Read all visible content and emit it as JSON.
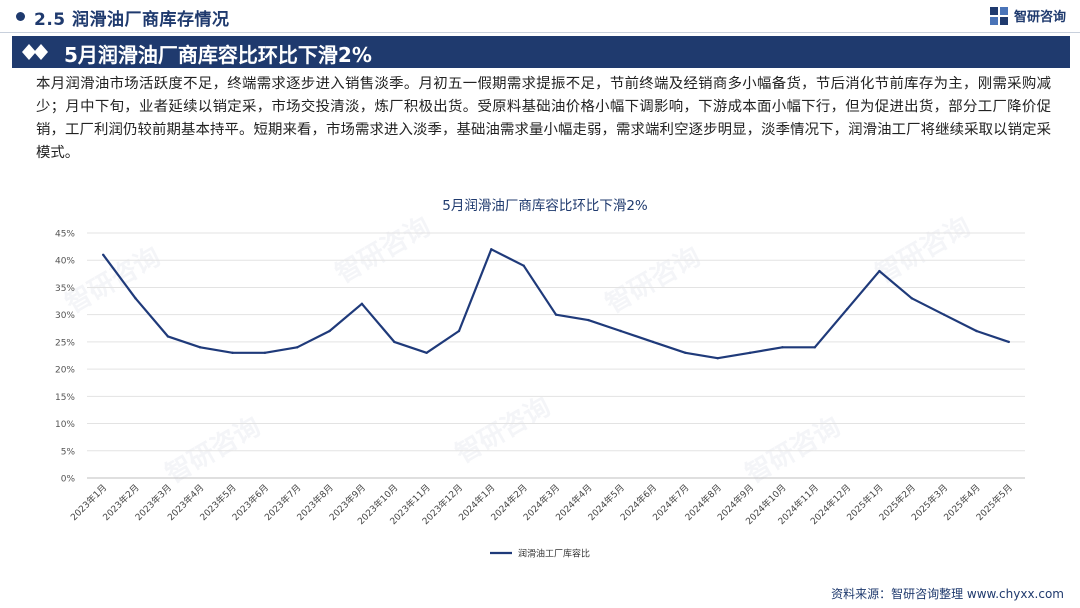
{
  "header": {
    "section_title": "2.5  润滑油厂商库存情况",
    "brand_name": "智研咨询"
  },
  "banner": {
    "title": "5月润滑油厂商库容比环比下滑2%"
  },
  "body_text": "本月润滑油市场活跃度不足，终端需求逐步进入销售淡季。月初五一假期需求提振不足，节前终端及经销商多小幅备货，节后消化节前库存为主，刚需采购减少；月中下旬，业者延续以销定采，市场交投清淡，炼厂积极出货。受原料基础油价格小幅下调影响，下游成本面小幅下行，但为促进出货，部分工厂降价促销，工厂利润仍较前期基本持平。短期来看，市场需求进入淡季，基础油需求量小幅走弱，需求端利空逐步明显，淡季情况下，润滑油工厂将继续采取以销定采模式。",
  "footer": "资料来源：智研咨询整理    www.chyxx.com",
  "watermark_text": "智研咨询",
  "colors": {
    "primary": "#1f3a6e",
    "line": "#1f3a7a",
    "grid": "#e3e3e3"
  },
  "chart_data": {
    "type": "line",
    "title": "5月润滑油厂商库容比环比下滑2%",
    "xlabel": "",
    "ylabel": "",
    "ylim": [
      0,
      45
    ],
    "y_ticks": [
      "0%",
      "5%",
      "10%",
      "15%",
      "20%",
      "25%",
      "30%",
      "35%",
      "40%",
      "45%"
    ],
    "categories": [
      "2023年1月",
      "2023年2月",
      "2023年3月",
      "2023年4月",
      "2023年5月",
      "2023年6月",
      "2023年7月",
      "2023年8月",
      "2023年9月",
      "2023年10月",
      "2023年11月",
      "2023年12月",
      "2024年1月",
      "2024年2月",
      "2024年3月",
      "2024年4月",
      "2024年5月",
      "2024年6月",
      "2024年7月",
      "2024年8月",
      "2024年9月",
      "2024年10月",
      "2024年11月",
      "2024年12月",
      "2025年1月",
      "2025年2月",
      "2025年3月",
      "2025年4月",
      "2025年5月"
    ],
    "grid": true,
    "legend_position": "bottom",
    "series": [
      {
        "name": "润滑油工厂库容比",
        "values": [
          41,
          33,
          26,
          24,
          23,
          23,
          24,
          27,
          32,
          25,
          23,
          27,
          42,
          39,
          30,
          29,
          27,
          25,
          23,
          22,
          23,
          24,
          24,
          31,
          38,
          33,
          30,
          27,
          25
        ]
      }
    ]
  }
}
